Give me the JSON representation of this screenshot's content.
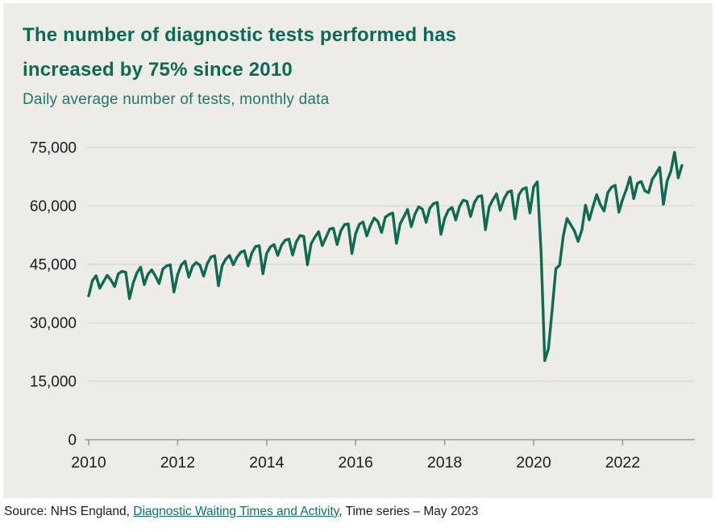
{
  "card": {
    "title": "The number of diagnostic tests performed has increased by 75% since 2010",
    "subtitle": "Daily average number of tests, monthly data"
  },
  "source": {
    "prefix": "Source: NHS England, ",
    "link_text": "Diagnostic Waiting Times and Activity",
    "suffix": ", Time series – May 2023"
  },
  "colors": {
    "card_bg": "#edece9",
    "title_green": "#0b6a53",
    "subtitle_green": "#1e7767",
    "line_green": "#0e6a50",
    "grid": "#dbd9d5",
    "axis": "#9a9a97",
    "text_dark": "#1c1c1c",
    "link_green": "#0c7361"
  },
  "chart_data": {
    "type": "line",
    "title": "The number of diagnostic tests performed has increased by 75% since 2010",
    "subtitle": "Daily average number of tests, monthly data",
    "x_start": "2010-01",
    "x_end": "2023-05",
    "x_frequency": "monthly",
    "x_tick_labels": [
      "2010",
      "2012",
      "2014",
      "2016",
      "2018",
      "2020",
      "2022"
    ],
    "y_ticks": [
      0,
      15000,
      30000,
      45000,
      60000,
      75000
    ],
    "y_tick_labels": [
      "0",
      "15,000",
      "30,000",
      "45,000",
      "60,000",
      "75,000"
    ],
    "ylim": [
      0,
      75000
    ],
    "grid": "horizontal-only",
    "legend": "none",
    "series": [
      {
        "name": "Daily average number of diagnostic tests",
        "values": [
          36900,
          40800,
          42100,
          38900,
          40600,
          42200,
          41000,
          39300,
          42600,
          43200,
          43000,
          36200,
          40200,
          42800,
          44300,
          39800,
          42500,
          43600,
          42000,
          40100,
          43800,
          44600,
          44900,
          37900,
          42400,
          44900,
          45800,
          41700,
          44500,
          45500,
          44800,
          42000,
          45200,
          46900,
          47200,
          39500,
          44700,
          46400,
          47300,
          44900,
          46800,
          48100,
          48500,
          44600,
          47900,
          49600,
          49800,
          42600,
          47800,
          49500,
          50100,
          47300,
          49900,
          51200,
          51500,
          47400,
          50800,
          52400,
          52200,
          44900,
          50300,
          52000,
          53400,
          49800,
          51900,
          54100,
          54300,
          50100,
          53600,
          55200,
          55400,
          47800,
          52900,
          55300,
          55900,
          52300,
          55000,
          56900,
          56000,
          53200,
          57100,
          57800,
          58200,
          50400,
          55400,
          57200,
          59100,
          54700,
          57900,
          59800,
          59200,
          55800,
          59400,
          60600,
          60900,
          52700,
          56800,
          58900,
          59600,
          56400,
          59800,
          61500,
          61200,
          57300,
          60800,
          62400,
          62600,
          53900,
          59700,
          61600,
          63100,
          58900,
          61800,
          63500,
          63900,
          56700,
          62800,
          64300,
          64700,
          58200,
          64900,
          66200,
          48300,
          20300,
          23400,
          33400,
          43900,
          44800,
          52300,
          56800,
          55200,
          53600,
          50900,
          53800,
          60200,
          56400,
          59800,
          62900,
          60300,
          58700,
          63400,
          64800,
          65300,
          58400,
          61700,
          64200,
          67400,
          61900,
          65800,
          66300,
          63900,
          63400,
          66800,
          68300,
          69900,
          60400,
          66400,
          68900,
          73800,
          67200,
          70400
        ]
      }
    ]
  }
}
